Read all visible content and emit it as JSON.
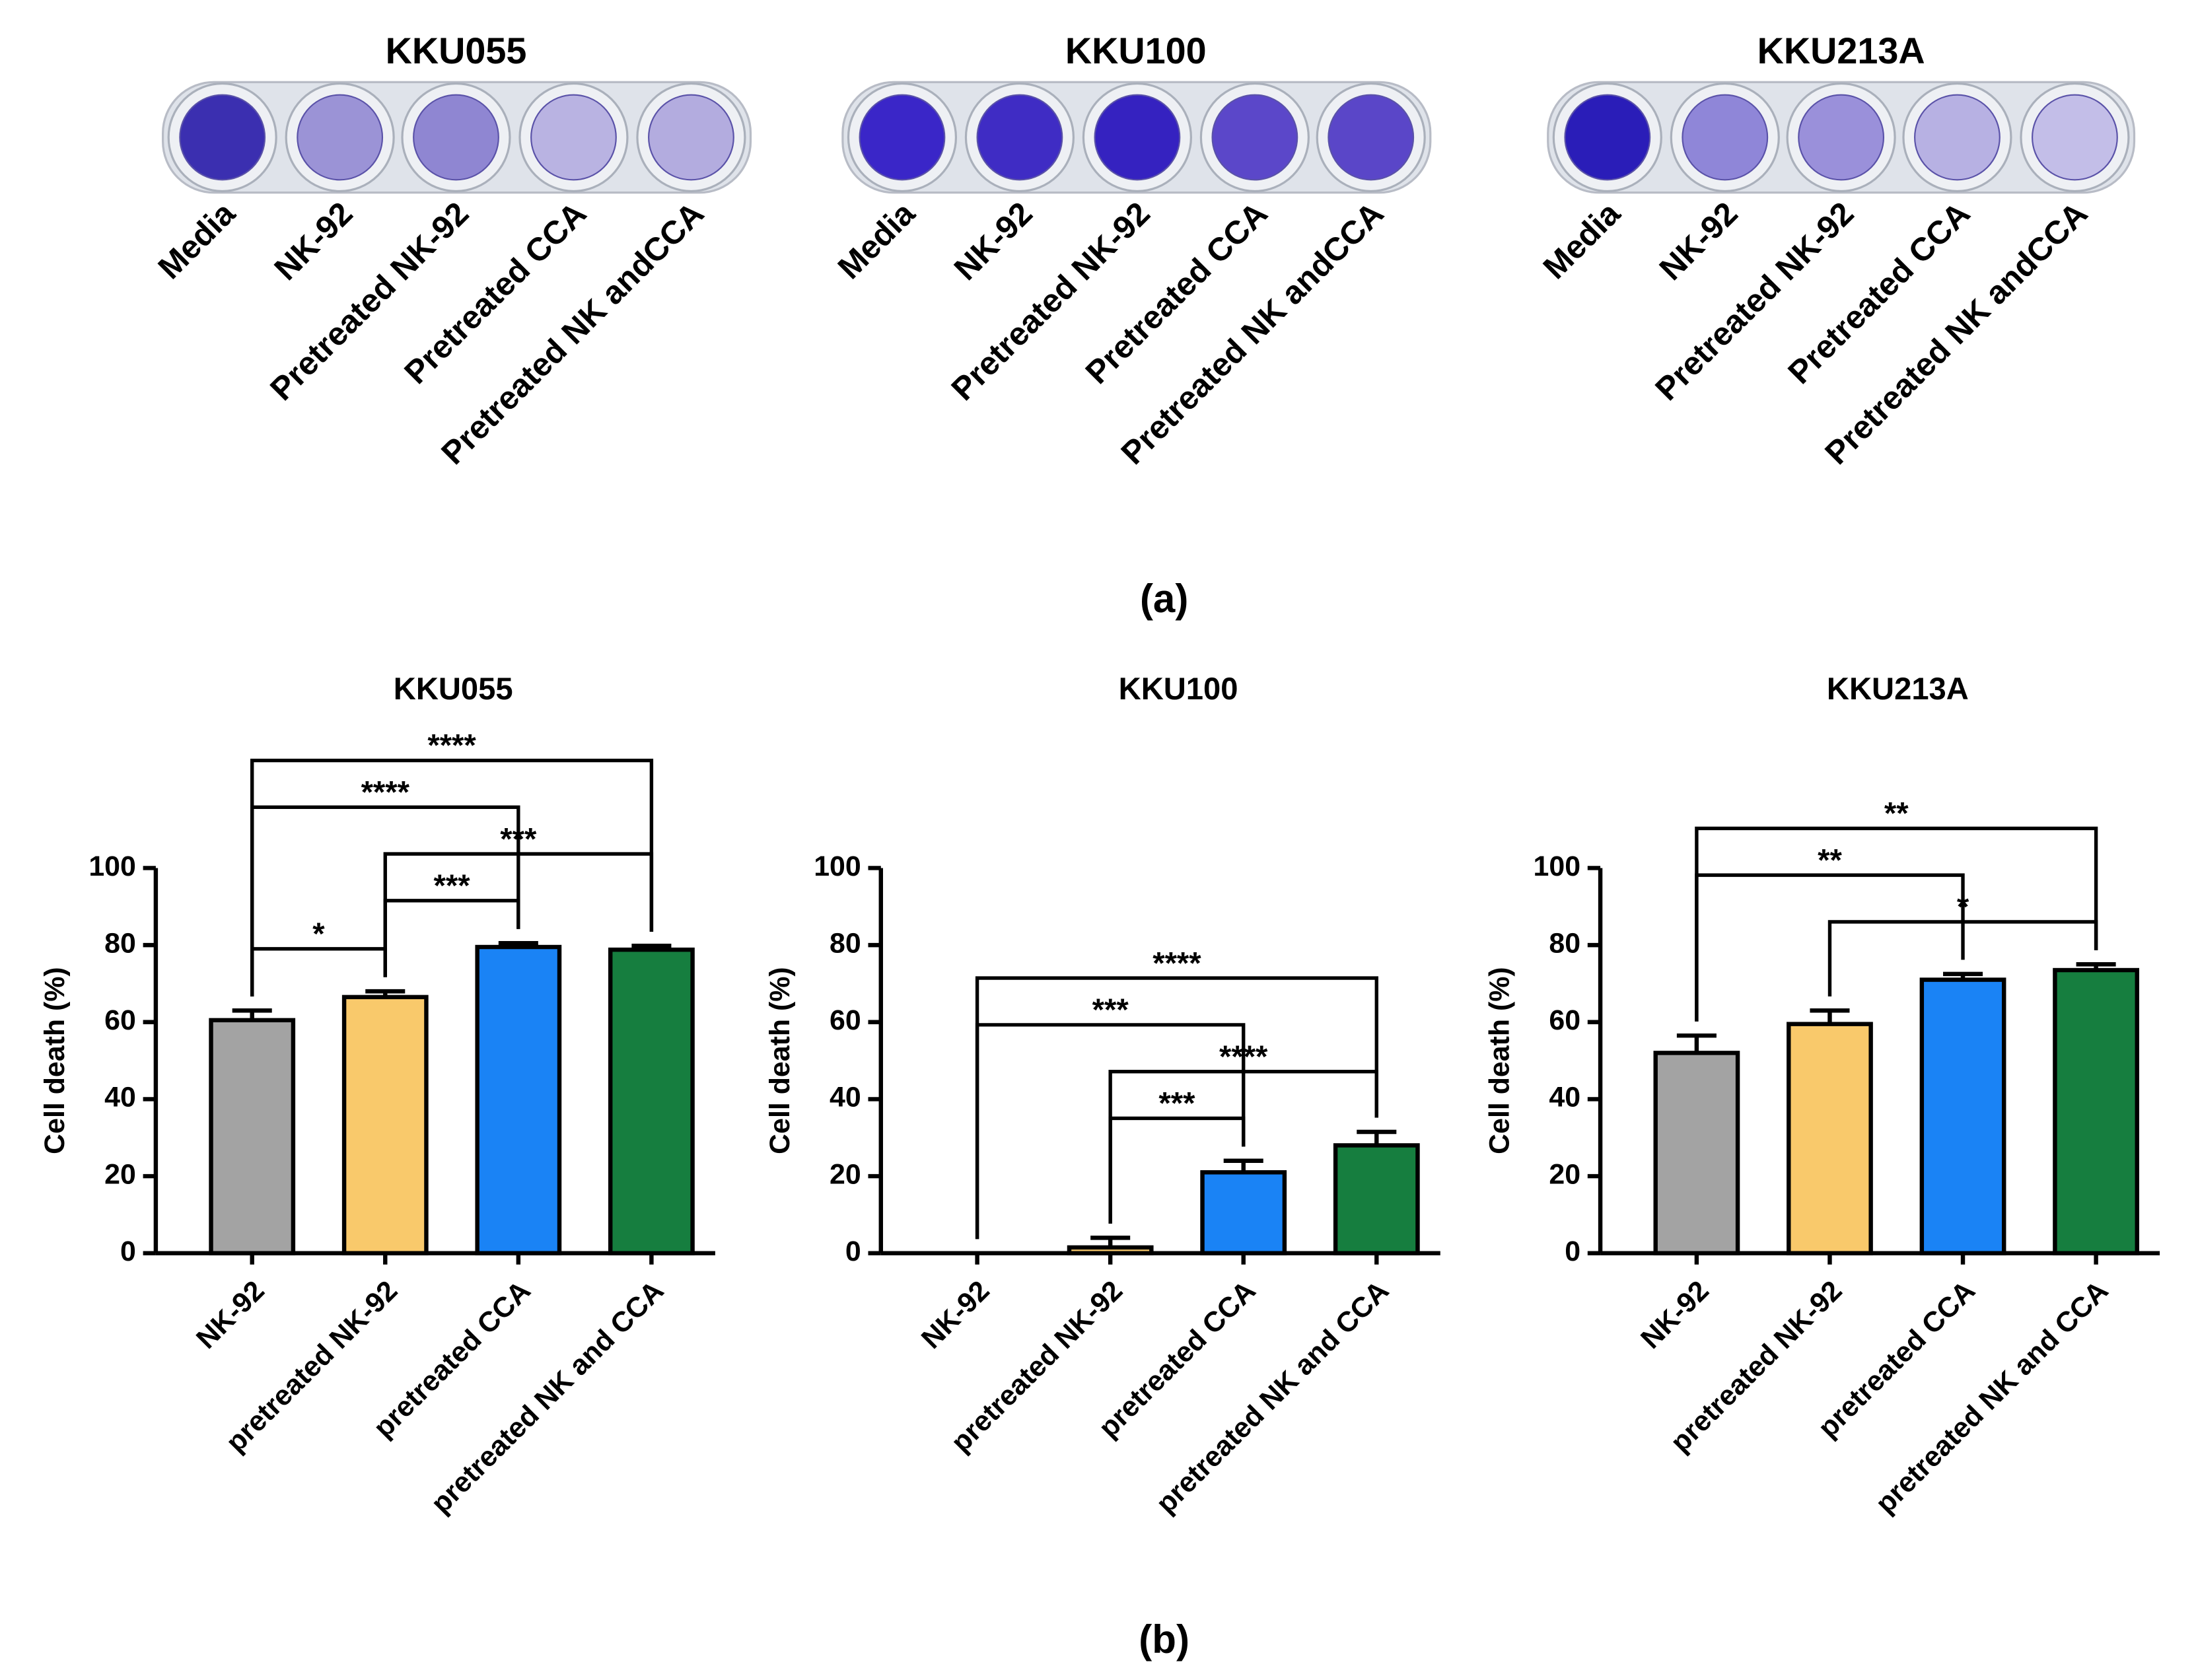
{
  "photo_panel": {
    "caption": "(a)",
    "panels": [
      {
        "title": "KKU055",
        "wells": [
          "Media",
          "NK-92",
          "Pretreated NK-92",
          "Pretreated CCA",
          "Pretreated NK andCCA"
        ]
      },
      {
        "title": "KKU100",
        "wells": [
          "Media",
          "NK-92",
          "Pretreated NK-92",
          "Pretreated CCA",
          "Pretreated NK andCCA"
        ]
      },
      {
        "title": "KKU213A",
        "wells": [
          "Media",
          "NK-92",
          "Pretreated NK-92",
          "Pretreated CCA",
          "Pretreated NK andCCA"
        ]
      }
    ]
  },
  "bar_panel_caption": "(b)",
  "chart_data": [
    {
      "type": "bar",
      "title": "KKU055",
      "y_label": "Cell death (%)",
      "categories": [
        "NK-92",
        "pretreated NK-92",
        "pretreated CCA",
        "pretreated NK and CCA"
      ],
      "values": [
        60.5,
        66.5,
        79.5,
        78.8
      ],
      "errors": [
        2.5,
        1.5,
        1,
        1
      ],
      "colors": [
        "#a3a3a3",
        "#f9c96b",
        "#1a83f5",
        "#167e3f"
      ],
      "ylim": [
        0,
        100
      ],
      "yticks": [
        0,
        20,
        40,
        60,
        80,
        100
      ],
      "annotations": [
        {
          "text": "*",
          "between": [
            "NK-92",
            "pretreated NK-92"
          ]
        },
        {
          "text": "***",
          "between": [
            "pretreated NK-92",
            "pretreated CCA"
          ]
        },
        {
          "text": "***",
          "between": [
            "pretreated NK-92",
            "pretreated NK and CCA"
          ]
        },
        {
          "text": "****",
          "between": [
            "NK-92",
            "pretreated CCA"
          ]
        },
        {
          "text": "****",
          "between": [
            "NK-92",
            "pretreated NK and CCA"
          ]
        }
      ]
    },
    {
      "type": "bar",
      "title": "KKU100",
      "y_label": "Cell death (%)",
      "categories": [
        "NK-92",
        "pretreated NK-92",
        "pretreated CCA",
        "pretreated NK and CCA"
      ],
      "values": [
        0,
        1.5,
        21,
        28
      ],
      "errors": [
        0,
        2.5,
        3,
        3.5
      ],
      "colors": [
        "#a3a3a3",
        "#f9c96b",
        "#1a83f5",
        "#167e3f"
      ],
      "ylim": [
        0,
        100
      ],
      "yticks": [
        0,
        20,
        40,
        60,
        80,
        100
      ],
      "annotations": [
        {
          "text": "***",
          "between": [
            "pretreated NK-92",
            "pretreated CCA"
          ]
        },
        {
          "text": "****",
          "between": [
            "pretreated NK-92",
            "pretreated NK and CCA"
          ]
        },
        {
          "text": "***",
          "between": [
            "NK-92",
            "pretreated CCA"
          ]
        },
        {
          "text": "****",
          "between": [
            "NK-92",
            "pretreated NK and CCA"
          ]
        }
      ]
    },
    {
      "type": "bar",
      "title": "KKU213A",
      "y_label": "Cell death (%)",
      "categories": [
        "NK-92",
        "pretreated NK-92",
        "pretreated CCA",
        "pretreated NK and CCA"
      ],
      "values": [
        52,
        59.5,
        71,
        73.5
      ],
      "errors": [
        4.5,
        3.5,
        1.5,
        1.5
      ],
      "colors": [
        "#a3a3a3",
        "#f9c96b",
        "#1a83f5",
        "#167e3f"
      ],
      "ylim": [
        0,
        100
      ],
      "yticks": [
        0,
        20,
        40,
        60,
        80,
        100
      ],
      "annotations": [
        {
          "text": "*",
          "between": [
            "pretreated NK-92",
            "pretreated NK and CCA"
          ]
        },
        {
          "text": "**",
          "between": [
            "NK-92",
            "pretreated CCA"
          ]
        },
        {
          "text": "**",
          "between": [
            "NK-92",
            "pretreated NK and CCA"
          ]
        }
      ]
    }
  ]
}
